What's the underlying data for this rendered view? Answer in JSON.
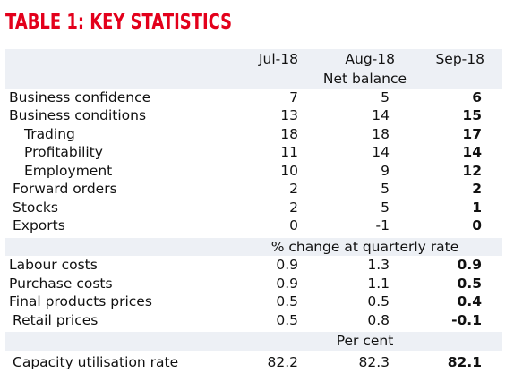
{
  "title": "TABLE 1: KEY STATISTICS",
  "columns": [
    "Jul-18",
    "Aug-18",
    "Sep-18"
  ],
  "sections": [
    {
      "unit": "Net balance",
      "rows": [
        {
          "label": "Business confidence",
          "values": [
            "7",
            "5",
            "6"
          ]
        },
        {
          "label": "Business conditions",
          "values": [
            "13",
            "14",
            "15"
          ]
        },
        {
          "label": "Trading",
          "values": [
            "18",
            "18",
            "17"
          ]
        },
        {
          "label": "Profitability",
          "values": [
            "11",
            "14",
            "14"
          ]
        },
        {
          "label": "Employment",
          "values": [
            "10",
            "9",
            "12"
          ]
        },
        {
          "label": "Forward orders",
          "values": [
            "2",
            "5",
            "2"
          ]
        },
        {
          "label": "Stocks",
          "values": [
            "2",
            "5",
            "1"
          ]
        },
        {
          "label": "Exports",
          "values": [
            "0",
            "-1",
            "0"
          ]
        }
      ]
    },
    {
      "unit": "% change at quarterly rate",
      "rows": [
        {
          "label": "Labour costs",
          "values": [
            "0.9",
            "1.3",
            "0.9"
          ]
        },
        {
          "label": "Purchase costs",
          "values": [
            "0.9",
            "1.1",
            "0.5"
          ]
        },
        {
          "label": "Final products prices",
          "values": [
            "0.5",
            "0.5",
            "0.4"
          ]
        },
        {
          "label": "Retail prices",
          "values": [
            "0.5",
            "0.8",
            "-0.1"
          ]
        }
      ]
    },
    {
      "unit": "Per cent",
      "rows": [
        {
          "label": "Capacity utilisation rate",
          "values": [
            "82.2",
            "82.3",
            "82.1"
          ]
        }
      ]
    }
  ],
  "colors": {
    "title": "#e3001b",
    "band": "#edf0f5",
    "text": "#111111"
  }
}
